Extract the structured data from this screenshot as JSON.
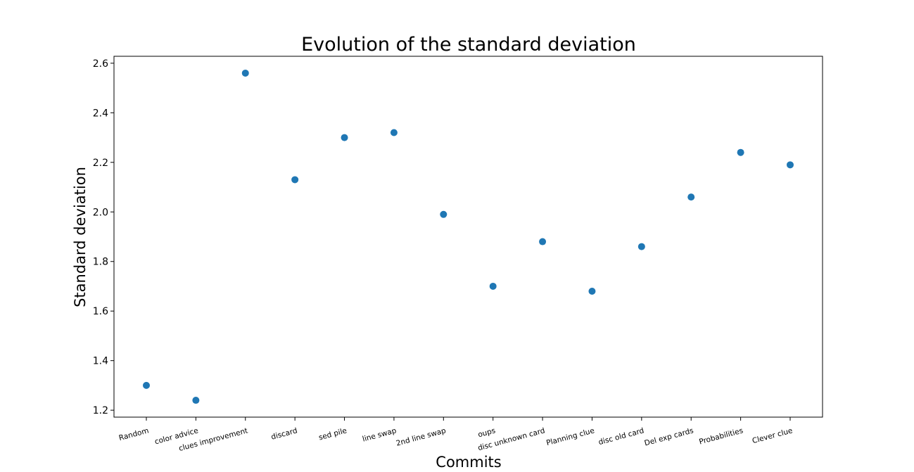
{
  "chart_data": {
    "type": "scatter",
    "title": "Evolution of the standard deviation",
    "xlabel": "Commits",
    "ylabel": "Standard deviation",
    "categories": [
      "Random",
      "color advice",
      "clues improvement",
      "discard",
      "sed pile",
      "line swap",
      "2nd line swap",
      "oups",
      "disc unknown card",
      "Planning clue",
      "disc old card",
      "Del exp cards",
      "Probabilities",
      "Clever clue"
    ],
    "series": [
      {
        "values": [
          1.3,
          1.24,
          2.56,
          2.13,
          2.3,
          2.32,
          1.99,
          1.7,
          1.88,
          1.68,
          1.86,
          2.06,
          2.24,
          2.19
        ]
      }
    ],
    "yticks": [
      "1.2",
      "1.4",
      "1.6",
      "1.8",
      "2.0",
      "2.2",
      "2.4",
      "2.6"
    ],
    "ylim": [
      1.172,
      2.628
    ],
    "grid": false,
    "legend": "none",
    "marker_color": "#1f77b4",
    "xtick_rotation_deg": -15
  }
}
